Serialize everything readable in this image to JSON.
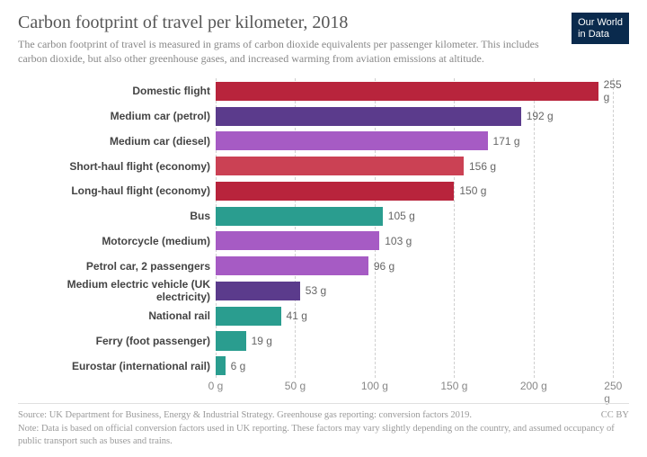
{
  "header": {
    "title": "Carbon footprint of travel per kilometer, 2018",
    "subtitle": "The carbon footprint of travel is measured in grams of carbon dioxide equivalents per passenger kilometer. This includes carbon dioxide, but also other greenhouse gases, and increased warming from aviation emissions at altitude.",
    "logo_line1": "Our World",
    "logo_line2": "in Data"
  },
  "chart": {
    "type": "bar",
    "orientation": "horizontal",
    "x_domain": [
      0,
      260
    ],
    "ticks": [
      0,
      50,
      100,
      150,
      200,
      250
    ],
    "tick_suffix": " g",
    "grid_color": "#d0d0d0",
    "background_color": "#ffffff",
    "label_fontsize": 12,
    "label_fontweight": "bold",
    "bar_gap_ratio": 0.24,
    "series": [
      {
        "label": "Domestic flight",
        "value": 255,
        "value_label": "255 g",
        "color": "#b8243c"
      },
      {
        "label": "Medium car (petrol)",
        "value": 192,
        "value_label": "192 g",
        "color": "#5b3b8c"
      },
      {
        "label": "Medium car (diesel)",
        "value": 171,
        "value_label": "171 g",
        "color": "#a65bc4"
      },
      {
        "label": "Short-haul flight (economy)",
        "value": 156,
        "value_label": "156 g",
        "color": "#cb4154"
      },
      {
        "label": "Long-haul flight (economy)",
        "value": 150,
        "value_label": "150 g",
        "color": "#b8243c"
      },
      {
        "label": "Bus",
        "value": 105,
        "value_label": "105 g",
        "color": "#2a9d8f"
      },
      {
        "label": "Motorcycle (medium)",
        "value": 103,
        "value_label": "103 g",
        "color": "#a65bc4"
      },
      {
        "label": "Petrol car, 2 passengers",
        "value": 96,
        "value_label": "96 g",
        "color": "#a65bc4"
      },
      {
        "label": "Medium electric vehicle (UK electricity)",
        "value": 53,
        "value_label": "53 g",
        "color": "#5b3b8c"
      },
      {
        "label": "National rail",
        "value": 41,
        "value_label": "41 g",
        "color": "#2a9d8f"
      },
      {
        "label": "Ferry (foot passenger)",
        "value": 19,
        "value_label": "19 g",
        "color": "#2a9d8f"
      },
      {
        "label": "Eurostar (international rail)",
        "value": 6,
        "value_label": "6 g",
        "color": "#2a9d8f"
      }
    ]
  },
  "footer": {
    "source": "Source: UK Department for Business, Energy & Industrial Strategy. Greenhouse gas reporting: conversion factors 2019.",
    "note": "Note: Data is based on official conversion factors used in UK reporting. These factors may vary slightly depending on the country, and assumed occupancy of public transport such as buses and trains.",
    "license": "CC BY"
  }
}
